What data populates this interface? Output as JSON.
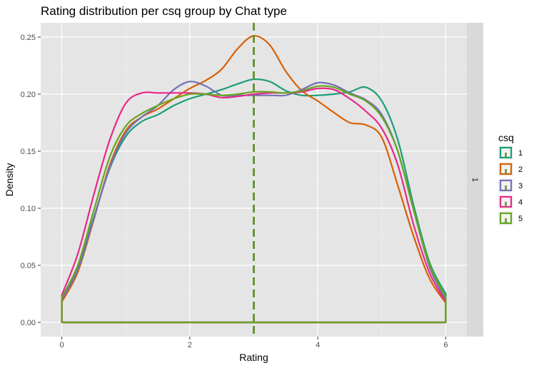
{
  "chart_data": {
    "type": "line",
    "title": "Rating distribution per csq group by Chat type",
    "xlabel": "Rating",
    "ylabel": "Density",
    "xlim": [
      -0.33,
      6.33
    ],
    "ylim": [
      -0.0125,
      0.2625
    ],
    "x_ticks": [
      0,
      2,
      4,
      6
    ],
    "y_ticks": [
      0.0,
      0.05,
      0.1,
      0.15,
      0.2,
      0.25
    ],
    "y_tick_labels": [
      "0.00",
      "0.05",
      "0.10",
      "0.15",
      "0.20",
      "0.25"
    ],
    "grid": true,
    "facet_strip_label": "1",
    "legend": {
      "title": "csq",
      "position": "right"
    },
    "vline": {
      "x": 3,
      "color": "#5f8f2a",
      "style": "dashed"
    },
    "series": [
      {
        "name": "1",
        "color": "#1b9e77",
        "x": [
          0,
          0.25,
          0.5,
          0.75,
          1.0,
          1.25,
          1.5,
          1.75,
          2.0,
          2.25,
          2.5,
          2.75,
          3.0,
          3.25,
          3.5,
          3.75,
          4.0,
          4.25,
          4.5,
          4.75,
          5.0,
          5.25,
          5.5,
          5.75,
          6.0
        ],
        "y": [
          0.021,
          0.048,
          0.092,
          0.135,
          0.163,
          0.176,
          0.182,
          0.19,
          0.196,
          0.2,
          0.204,
          0.209,
          0.213,
          0.211,
          0.203,
          0.199,
          0.199,
          0.2,
          0.202,
          0.206,
          0.194,
          0.16,
          0.102,
          0.052,
          0.025
        ]
      },
      {
        "name": "2",
        "color": "#d95f02",
        "x": [
          0,
          0.25,
          0.5,
          0.75,
          1.0,
          1.25,
          1.5,
          1.75,
          2.0,
          2.25,
          2.5,
          2.75,
          3.0,
          3.25,
          3.5,
          3.75,
          4.0,
          4.25,
          4.5,
          4.75,
          5.0,
          5.25,
          5.5,
          5.75,
          6.0
        ],
        "y": [
          0.018,
          0.044,
          0.09,
          0.138,
          0.168,
          0.18,
          0.187,
          0.196,
          0.205,
          0.212,
          0.222,
          0.24,
          0.251,
          0.243,
          0.22,
          0.203,
          0.194,
          0.184,
          0.175,
          0.173,
          0.162,
          0.12,
          0.075,
          0.038,
          0.017
        ]
      },
      {
        "name": "3",
        "color": "#7570b3",
        "x": [
          0,
          0.25,
          0.5,
          0.75,
          1.0,
          1.25,
          1.5,
          1.75,
          2.0,
          2.25,
          2.5,
          2.75,
          3.0,
          3.25,
          3.5,
          3.75,
          4.0,
          4.25,
          4.5,
          4.75,
          5.0,
          5.25,
          5.5,
          5.75,
          6.0
        ],
        "y": [
          0.02,
          0.046,
          0.091,
          0.136,
          0.166,
          0.18,
          0.19,
          0.204,
          0.211,
          0.207,
          0.199,
          0.199,
          0.199,
          0.199,
          0.199,
          0.204,
          0.21,
          0.208,
          0.201,
          0.195,
          0.182,
          0.15,
          0.098,
          0.048,
          0.02
        ]
      },
      {
        "name": "4",
        "color": "#e7298a",
        "x": [
          0,
          0.25,
          0.5,
          0.75,
          1.0,
          1.25,
          1.5,
          1.75,
          2.0,
          2.25,
          2.5,
          2.75,
          3.0,
          3.25,
          3.5,
          3.75,
          4.0,
          4.25,
          4.5,
          4.75,
          5.0,
          5.25,
          5.5,
          5.75,
          6.0
        ],
        "y": [
          0.024,
          0.06,
          0.112,
          0.16,
          0.192,
          0.201,
          0.201,
          0.201,
          0.201,
          0.2,
          0.197,
          0.198,
          0.2,
          0.201,
          0.201,
          0.202,
          0.205,
          0.204,
          0.196,
          0.185,
          0.17,
          0.138,
          0.085,
          0.043,
          0.018
        ]
      },
      {
        "name": "5",
        "color": "#66a61e",
        "x": [
          0,
          0.25,
          0.5,
          0.75,
          1.0,
          1.25,
          1.5,
          1.75,
          2.0,
          2.25,
          2.5,
          2.75,
          3.0,
          3.25,
          3.5,
          3.75,
          4.0,
          4.25,
          4.5,
          4.75,
          5.0,
          5.25,
          5.5,
          5.75,
          6.0
        ],
        "y": [
          0.022,
          0.05,
          0.098,
          0.145,
          0.172,
          0.183,
          0.19,
          0.196,
          0.2,
          0.2,
          0.199,
          0.2,
          0.202,
          0.202,
          0.201,
          0.203,
          0.207,
          0.206,
          0.2,
          0.194,
          0.18,
          0.15,
          0.098,
          0.05,
          0.022
        ]
      }
    ]
  }
}
